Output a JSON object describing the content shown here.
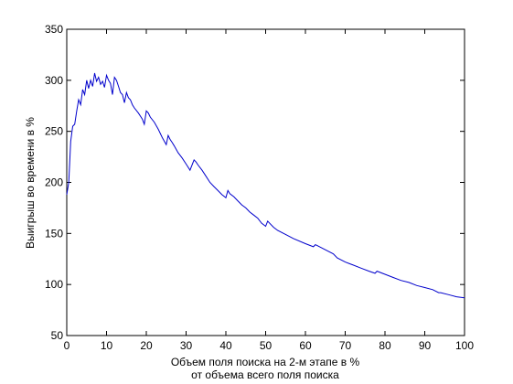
{
  "chart_data": {
    "type": "line",
    "title": "",
    "xlabel_line1": "Объем поля поиска на 2-м этапе в %",
    "xlabel_line2": "от объема всего поля поиска",
    "ylabel": "Выигрыш во времени в %",
    "xlim": [
      0,
      100
    ],
    "ylim": [
      50,
      350
    ],
    "xticks": [
      0,
      10,
      20,
      30,
      40,
      50,
      60,
      70,
      80,
      90,
      100
    ],
    "yticks": [
      50,
      100,
      150,
      200,
      250,
      300,
      350
    ],
    "grid": false,
    "line_color": "#0000cc",
    "x": [
      0,
      0.5,
      1,
      1.5,
      2,
      2.5,
      3,
      3.5,
      4,
      4.5,
      5,
      5.5,
      6,
      6.5,
      7,
      7.5,
      8,
      8.5,
      9,
      9.5,
      10,
      10.5,
      11,
      11.5,
      12,
      12.5,
      13,
      13.5,
      14,
      14.5,
      15,
      15.5,
      16,
      16.5,
      17,
      18,
      19,
      19.5,
      20,
      20.5,
      21,
      22,
      23,
      24,
      25,
      25.5,
      26,
      26.5,
      27,
      28,
      29,
      30,
      31,
      32,
      32.5,
      33,
      34,
      35,
      36,
      37,
      38,
      39,
      40,
      40.5,
      41,
      42,
      43,
      44,
      45,
      46,
      47,
      48,
      49,
      50,
      50.5,
      51,
      52,
      53,
      55,
      57,
      60,
      62,
      62.5,
      63,
      65,
      67,
      68,
      70,
      72,
      74,
      76,
      77.5,
      78,
      80,
      82,
      84,
      86,
      88,
      90,
      92,
      93.5,
      94,
      96,
      98,
      100
    ],
    "y": [
      188,
      200,
      240,
      255,
      257,
      270,
      281,
      276,
      291,
      286,
      300,
      292,
      300,
      294,
      307,
      299,
      303,
      296,
      299,
      293,
      305,
      300,
      297,
      286,
      303,
      300,
      294,
      288,
      286,
      278,
      288,
      283,
      281,
      276,
      273,
      268,
      262,
      257,
      270,
      268,
      264,
      259,
      252,
      244,
      237,
      246,
      242,
      239,
      236,
      229,
      224,
      218,
      212,
      222,
      220,
      217,
      212,
      206,
      200,
      196,
      192,
      188,
      185,
      192,
      189,
      186,
      182,
      178,
      175,
      171,
      168,
      165,
      160,
      157,
      162,
      160,
      156,
      153,
      149,
      145,
      140,
      137,
      139,
      138,
      134,
      130,
      126,
      122,
      119,
      116,
      113,
      111,
      113,
      110,
      107,
      104,
      102,
      99,
      97,
      95,
      92,
      92,
      90,
      88,
      87
    ]
  }
}
